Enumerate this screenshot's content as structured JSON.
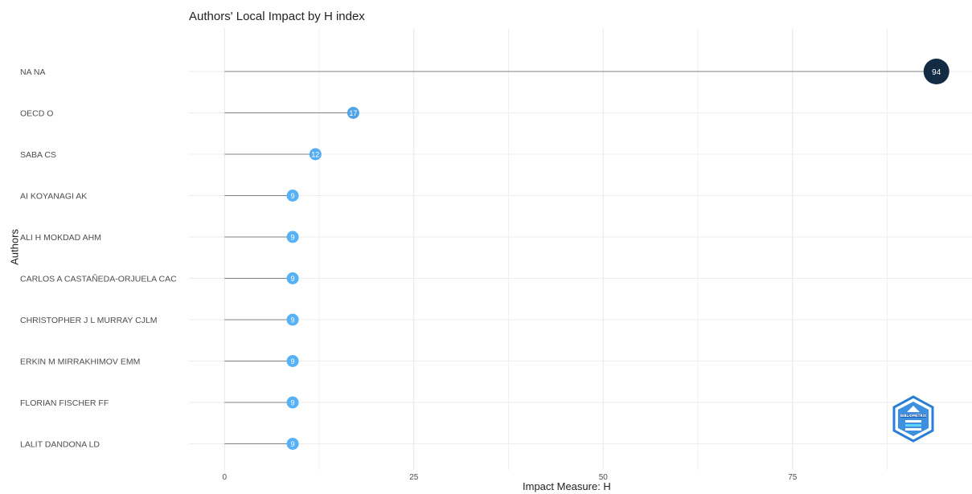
{
  "chart_data": {
    "type": "lollipop",
    "title": "Authors' Local Impact by H index",
    "xlabel": "Impact Measure: H",
    "ylabel": "Authors",
    "xlim": [
      -4.7,
      98.7
    ],
    "x_ticks": [
      0,
      25,
      50,
      75
    ],
    "grid": true,
    "categories": [
      "NA NA",
      "OECD O",
      "SABA CS",
      "AI KOYANAGI AK",
      "ALI H MOKDAD AHM",
      "CARLOS A CASTAÑEDA-ORJUELA CAC",
      "CHRISTOPHER J L MURRAY CJLM",
      "ERKIN M MIRRAKHIMOV EMM",
      "FLORIAN FISCHER FF",
      "LALIT DANDONA LD"
    ],
    "values": [
      94,
      17,
      12,
      9,
      9,
      9,
      9,
      9,
      9,
      9
    ],
    "colors": {
      "high": "#132B43",
      "low": "#56B1F7",
      "stem": "#808080",
      "grid": "#ebebeb"
    }
  },
  "logo": {
    "icon": "bibliometrix-hexagon-icon",
    "text": "BIBLIOMETRIX"
  }
}
